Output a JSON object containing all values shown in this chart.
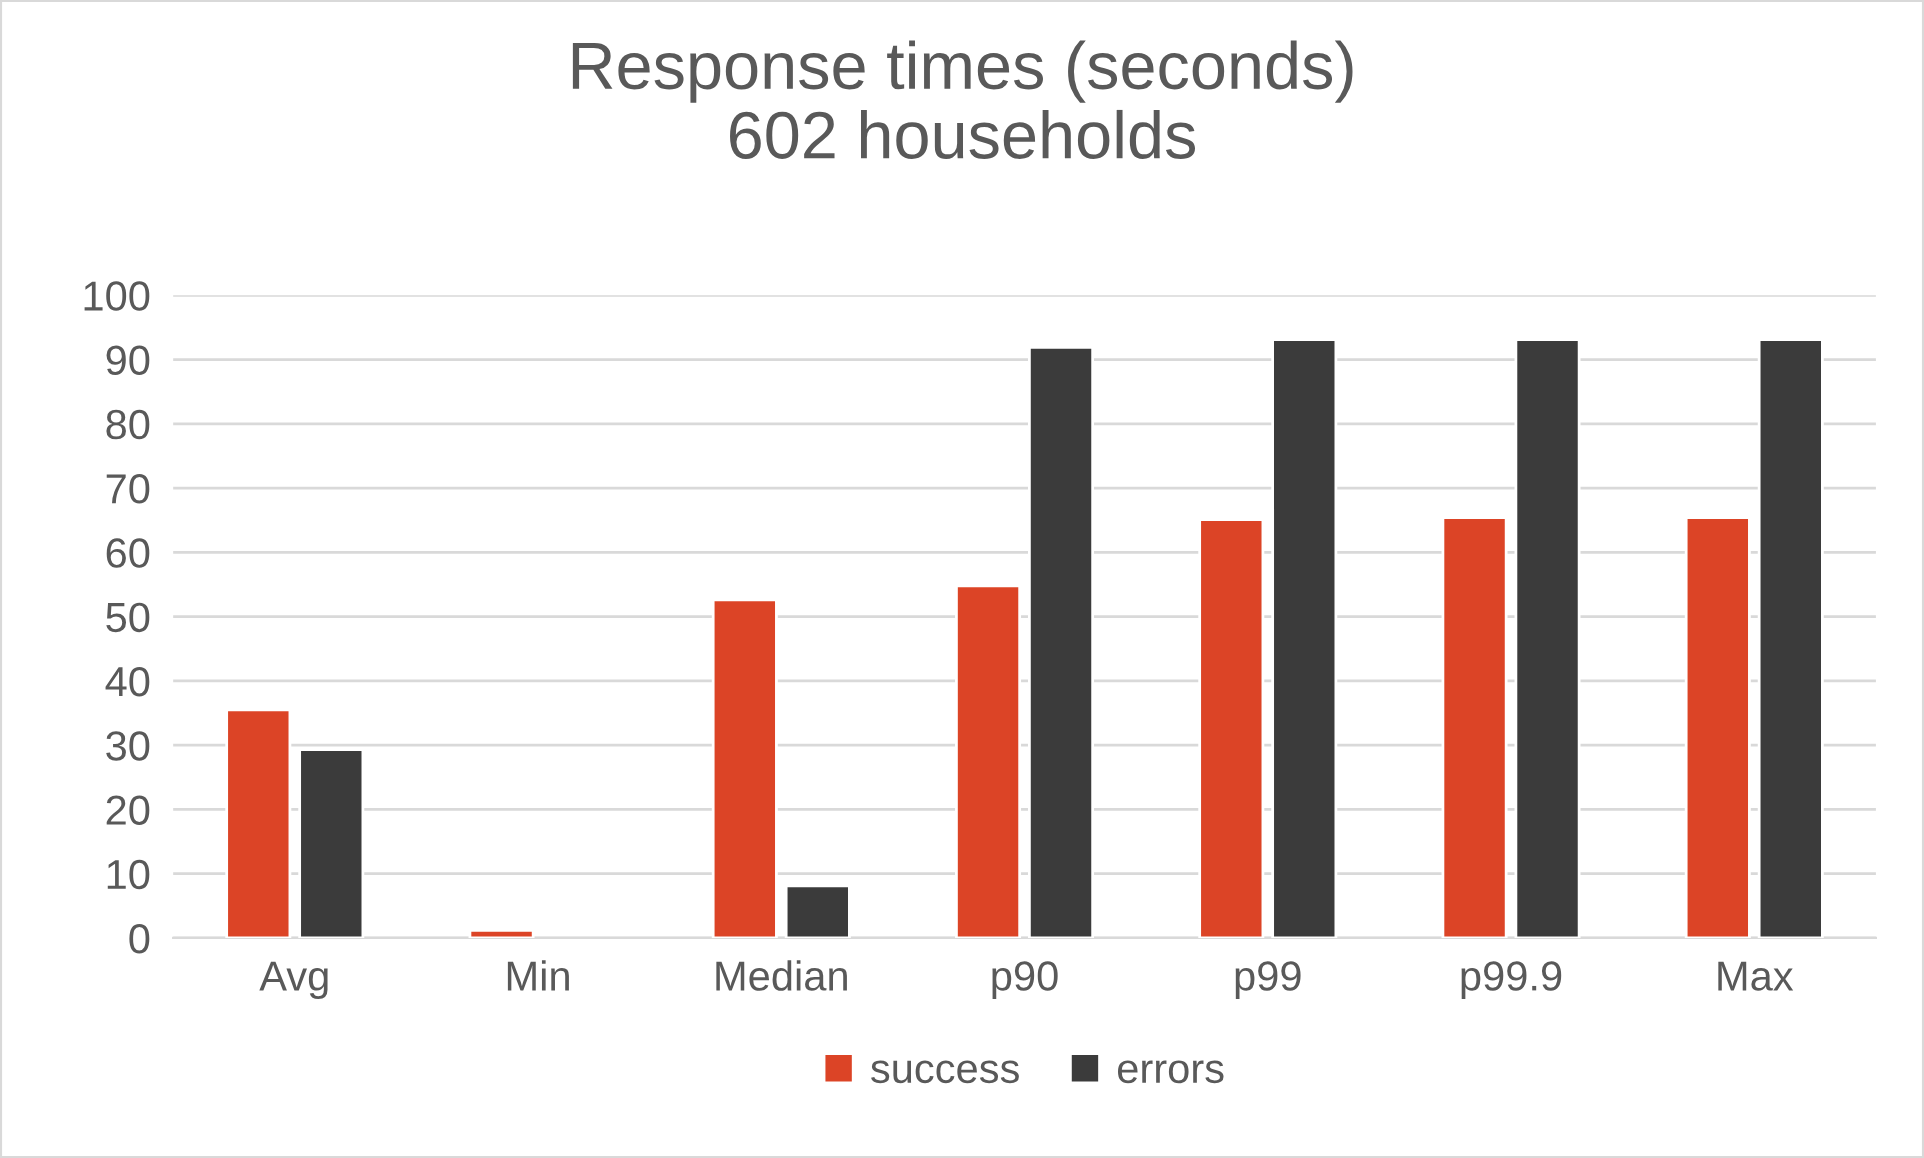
{
  "chart_data": {
    "type": "bar",
    "title": "Response times (seconds)\n602 households",
    "categories": [
      "Avg",
      "Min",
      "Median",
      "p90",
      "p99",
      "p99.9",
      "Max"
    ],
    "series": [
      {
        "name": "success",
        "color": "#dc4426",
        "values": [
          35.5,
          1.2,
          52.6,
          54.8,
          65.1,
          65.4,
          65.4
        ]
      },
      {
        "name": "errors",
        "color": "#3b3b3b",
        "values": [
          29.3,
          null,
          8.1,
          91.9,
          93.1,
          93.1,
          93.1
        ]
      }
    ],
    "ylim": [
      0,
      100
    ],
    "yticks": [
      0,
      10,
      20,
      30,
      40,
      50,
      60,
      70,
      80,
      90,
      100
    ],
    "grid": "y",
    "legend": "bottom"
  }
}
